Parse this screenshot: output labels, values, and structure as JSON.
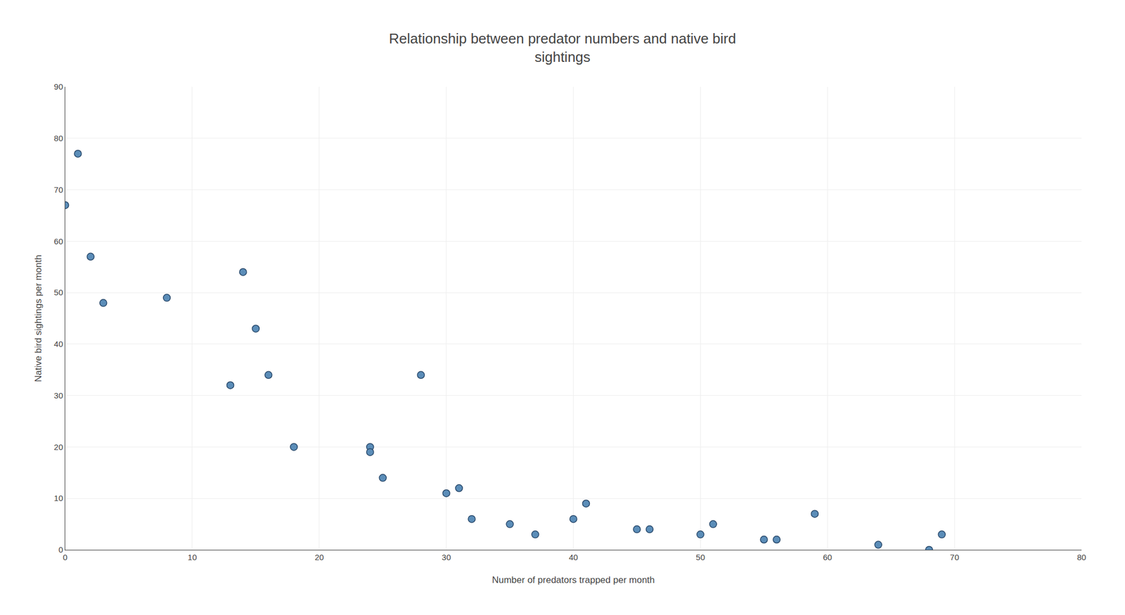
{
  "chart_data": {
    "type": "scatter",
    "title": "Relationship between predator numbers and native bird\nsightings",
    "xlabel": "Number of predators trapped per month",
    "ylabel": "Native bird sightings per month",
    "x": [
      0,
      1,
      2,
      3,
      8,
      13,
      14,
      15,
      16,
      18,
      24,
      24,
      25,
      28,
      30,
      31,
      32,
      35,
      37,
      40,
      41,
      45,
      46,
      50,
      51,
      55,
      56,
      59,
      64,
      68,
      69
    ],
    "values": [
      67,
      77,
      57,
      48,
      49,
      32,
      54,
      43,
      34,
      20,
      20,
      19,
      14,
      34,
      11,
      12,
      6,
      5,
      3,
      6,
      9,
      4,
      4,
      3,
      5,
      2,
      2,
      7,
      1,
      0,
      3
    ],
    "color": "#5b8db8",
    "xlim": [
      0,
      80
    ],
    "ylim": [
      0,
      90
    ],
    "xticks": [
      0,
      10,
      20,
      30,
      40,
      50,
      60,
      70,
      80
    ],
    "yticks": [
      0,
      10,
      20,
      30,
      40,
      50,
      60,
      70,
      80,
      90
    ],
    "grid": true
  }
}
